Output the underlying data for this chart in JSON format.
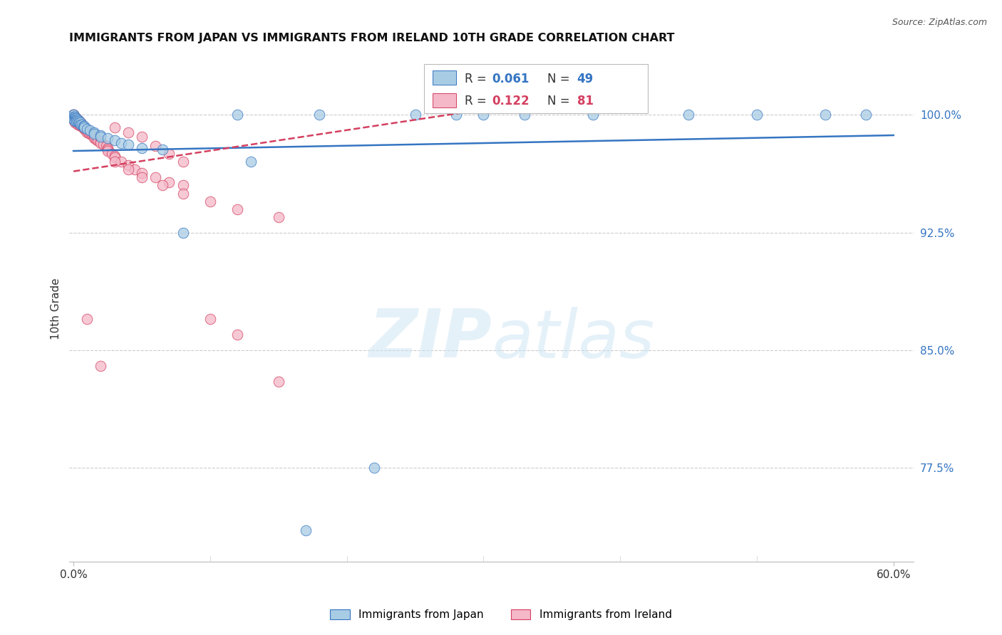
{
  "title": "IMMIGRANTS FROM JAPAN VS IMMIGRANTS FROM IRELAND 10TH GRADE CORRELATION CHART",
  "source": "Source: ZipAtlas.com",
  "ylabel": "10th Grade",
  "ytick_labels": [
    "77.5%",
    "85.0%",
    "92.5%",
    "100.0%"
  ],
  "ytick_values": [
    0.775,
    0.85,
    0.925,
    1.0
  ],
  "xlim_min": -0.003,
  "xlim_max": 0.615,
  "ylim_min": 0.715,
  "ylim_max": 1.038,
  "japan_color": "#a8cce4",
  "ireland_color": "#f4b8c8",
  "trendline_japan_color": "#3575c2",
  "trendline_ireland_color": "#d44060",
  "japan_scatter": {
    "x": [
      0.0,
      0.0,
      0.0,
      0.0,
      0.0,
      0.001,
      0.001,
      0.001,
      0.001,
      0.002,
      0.002,
      0.002,
      0.003,
      0.003,
      0.004,
      0.004,
      0.005,
      0.005,
      0.006,
      0.007,
      0.008,
      0.008,
      0.01,
      0.012,
      0.015,
      0.015,
      0.02,
      0.02,
      0.025,
      0.03,
      0.035,
      0.04,
      0.05,
      0.065,
      0.08,
      0.12,
      0.18,
      0.25,
      0.3,
      0.38,
      0.45,
      0.5,
      0.55,
      0.58,
      0.13,
      0.22,
      0.17,
      0.28,
      0.33
    ],
    "y": [
      1.0,
      1.0,
      0.999,
      0.998,
      0.997,
      0.999,
      0.998,
      0.997,
      0.996,
      0.998,
      0.997,
      0.996,
      0.997,
      0.996,
      0.996,
      0.995,
      0.995,
      0.994,
      0.994,
      0.993,
      0.993,
      0.992,
      0.991,
      0.99,
      0.989,
      0.988,
      0.987,
      0.986,
      0.985,
      0.984,
      0.982,
      0.981,
      0.979,
      0.978,
      0.925,
      1.0,
      1.0,
      1.0,
      1.0,
      1.0,
      1.0,
      1.0,
      1.0,
      1.0,
      0.97,
      0.775,
      0.735,
      1.0,
      1.0
    ]
  },
  "ireland_scatter": {
    "x": [
      0.0,
      0.0,
      0.0,
      0.0,
      0.0,
      0.0,
      0.001,
      0.001,
      0.001,
      0.001,
      0.001,
      0.002,
      0.002,
      0.002,
      0.002,
      0.003,
      0.003,
      0.003,
      0.003,
      0.004,
      0.004,
      0.004,
      0.005,
      0.005,
      0.005,
      0.006,
      0.006,
      0.007,
      0.007,
      0.008,
      0.008,
      0.009,
      0.009,
      0.01,
      0.01,
      0.011,
      0.012,
      0.013,
      0.014,
      0.015,
      0.015,
      0.015,
      0.016,
      0.017,
      0.018,
      0.02,
      0.02,
      0.022,
      0.024,
      0.025,
      0.025,
      0.025,
      0.028,
      0.03,
      0.03,
      0.035,
      0.04,
      0.045,
      0.05,
      0.06,
      0.07,
      0.08,
      0.1,
      0.12,
      0.15,
      0.03,
      0.04,
      0.05,
      0.06,
      0.07,
      0.08,
      0.01,
      0.02,
      0.03,
      0.04,
      0.05,
      0.065,
      0.08,
      0.1,
      0.12,
      0.15
    ],
    "y": [
      1.0,
      1.0,
      0.999,
      0.999,
      0.998,
      0.997,
      0.999,
      0.998,
      0.997,
      0.996,
      0.995,
      0.998,
      0.997,
      0.996,
      0.995,
      0.997,
      0.996,
      0.995,
      0.994,
      0.996,
      0.995,
      0.994,
      0.995,
      0.994,
      0.993,
      0.994,
      0.993,
      0.993,
      0.992,
      0.992,
      0.991,
      0.991,
      0.99,
      0.99,
      0.989,
      0.989,
      0.988,
      0.988,
      0.987,
      0.987,
      0.986,
      0.985,
      0.985,
      0.984,
      0.984,
      0.983,
      0.982,
      0.981,
      0.98,
      0.979,
      0.978,
      0.977,
      0.975,
      0.974,
      0.973,
      0.97,
      0.968,
      0.965,
      0.963,
      0.96,
      0.957,
      0.955,
      0.87,
      0.86,
      0.83,
      0.992,
      0.989,
      0.986,
      0.98,
      0.975,
      0.97,
      0.87,
      0.84,
      0.97,
      0.965,
      0.96,
      0.955,
      0.95,
      0.945,
      0.94,
      0.935
    ]
  },
  "japan_trend_x": [
    0.0,
    0.6
  ],
  "japan_trend_y": [
    0.977,
    0.987
  ],
  "ireland_trend_x": [
    0.0,
    0.35
  ],
  "ireland_trend_y": [
    0.964,
    1.01
  ]
}
